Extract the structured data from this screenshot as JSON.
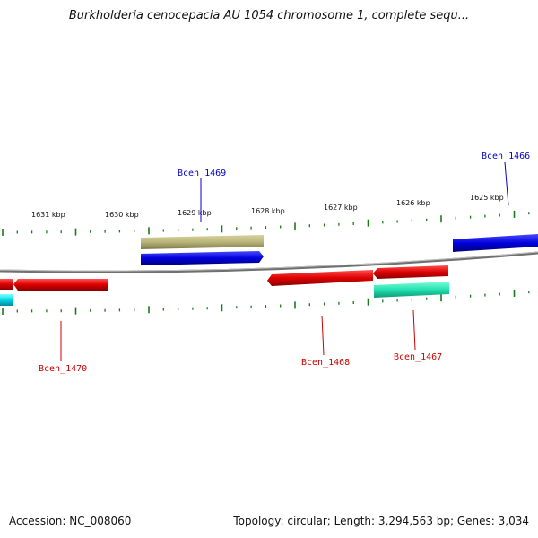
{
  "title": "Burkholderia cenocepacia AU 1054 chromosome 1, complete sequ...",
  "footer": {
    "accession": "Accession: NC_008060",
    "summary": "Topology: circular; Length: 3,294,563 bp; Genes: 3,034"
  },
  "ruler_labels": [
    "1631 kbp",
    "1630 kbp",
    "1629 kbp",
    "1628 kbp",
    "1627 kbp",
    "1626 kbp",
    "1625 kbp"
  ],
  "genes": [
    {
      "name": "Bcen_1466",
      "strand": "forward",
      "color": "#0000dd"
    },
    {
      "name": "Bcen_1467",
      "strand": "reverse",
      "color": "#dd0000"
    },
    {
      "name": "Bcen_1468",
      "strand": "reverse",
      "color": "#dd0000"
    },
    {
      "name": "Bcen_1469",
      "strand": "forward",
      "color": "#0000dd"
    },
    {
      "name": "Bcen_1470",
      "strand": "reverse",
      "color": "#dd0000"
    }
  ],
  "feature_colors": {
    "forward_gene": "#0000dd",
    "reverse_gene": "#dd0000",
    "forward_other": "#b8b47a",
    "reverse_other_a": "#22e0b0",
    "reverse_other_b": "#00d8e8",
    "tick": "#1a7a1a",
    "backbone": "#808080"
  }
}
